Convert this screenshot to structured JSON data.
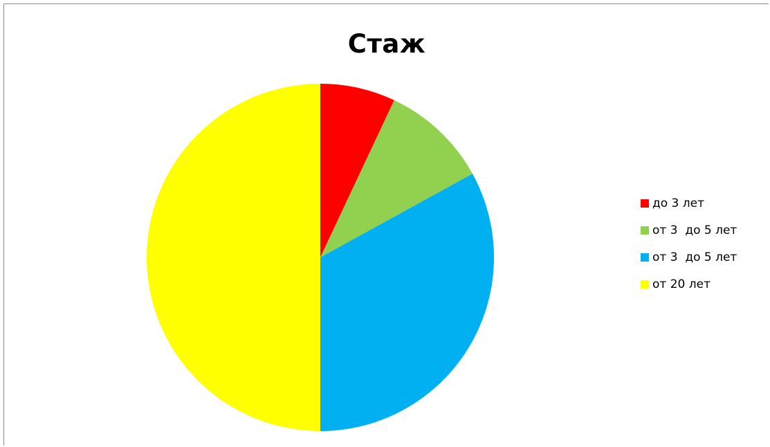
{
  "chart_data": {
    "type": "pie",
    "title": "Стаж",
    "categories": [
      "до 3 лет",
      "от 3  до 5 лет",
      "от 3  до 5 лет",
      "от 20 лет"
    ],
    "values": [
      7,
      10,
      33,
      50
    ],
    "colors": [
      "#ff0000",
      "#92d050",
      "#00b0f0",
      "#ffff00"
    ],
    "start_angle_deg": 0,
    "direction": "clockwise",
    "legend_position": "right"
  }
}
